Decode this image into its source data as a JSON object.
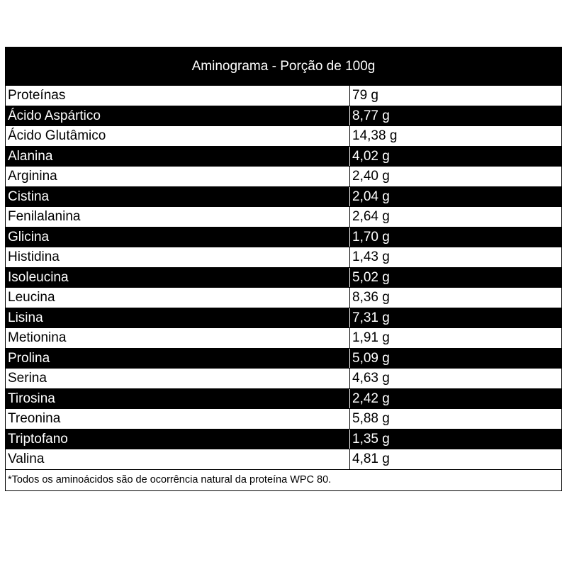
{
  "table": {
    "title": "Aminograma - Porção de 100g",
    "rows": [
      {
        "name": "Proteínas",
        "value": "79 g"
      },
      {
        "name": "Ácido Aspártico",
        "value": "8,77 g"
      },
      {
        "name": "Ácido Glutâmico",
        "value": "14,38 g"
      },
      {
        "name": "Alanina",
        "value": "4,02 g"
      },
      {
        "name": "Arginina",
        "value": "2,40 g"
      },
      {
        "name": "Cistina",
        "value": "2,04 g"
      },
      {
        "name": "Fenilalanina",
        "value": "2,64 g"
      },
      {
        "name": "Glicina",
        "value": "1,70 g"
      },
      {
        "name": "Histidina",
        "value": "1,43 g"
      },
      {
        "name": "Isoleucina",
        "value": "5,02 g"
      },
      {
        "name": "Leucina",
        "value": "8,36 g"
      },
      {
        "name": "Lisina",
        "value": "7,31 g"
      },
      {
        "name": "Metionina",
        "value": "1,91 g"
      },
      {
        "name": "Prolina",
        "value": "5,09 g"
      },
      {
        "name": "Serina",
        "value": "4,63 g"
      },
      {
        "name": "Tirosina",
        "value": "2,42 g"
      },
      {
        "name": "Treonina",
        "value": "5,88 g"
      },
      {
        "name": "Triptofano",
        "value": "1,35 g"
      },
      {
        "name": "Valina",
        "value": "4,81 g"
      }
    ],
    "footnote": "*Todos os aminoácidos são de ocorrência natural da proteína WPC 80."
  },
  "colors": {
    "dark_row": "#000000",
    "light_row": "#ffffff"
  }
}
